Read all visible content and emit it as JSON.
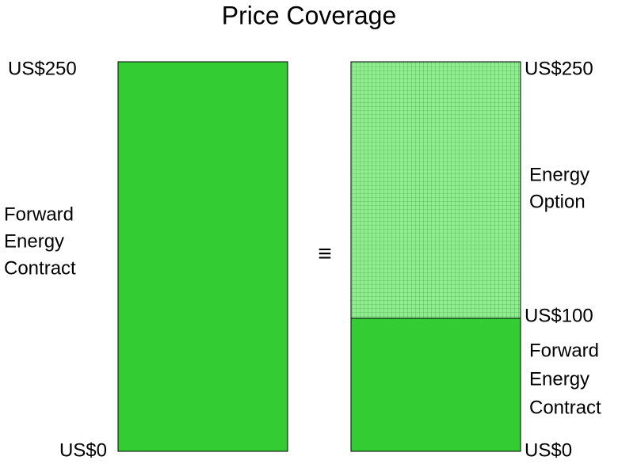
{
  "title": "Price Coverage",
  "left": {
    "top_label": "US$250",
    "bottom_label": "US$0",
    "name": [
      "Forward",
      "Energy",
      "Contract"
    ]
  },
  "equivalence": "≡",
  "right": {
    "top_label": "US$250",
    "mid_label": "US$100",
    "bottom_label": "US$0",
    "upper_name": [
      "Energy",
      "Option"
    ],
    "lower_name": [
      "Forward",
      "Energy",
      "Contract"
    ]
  }
}
